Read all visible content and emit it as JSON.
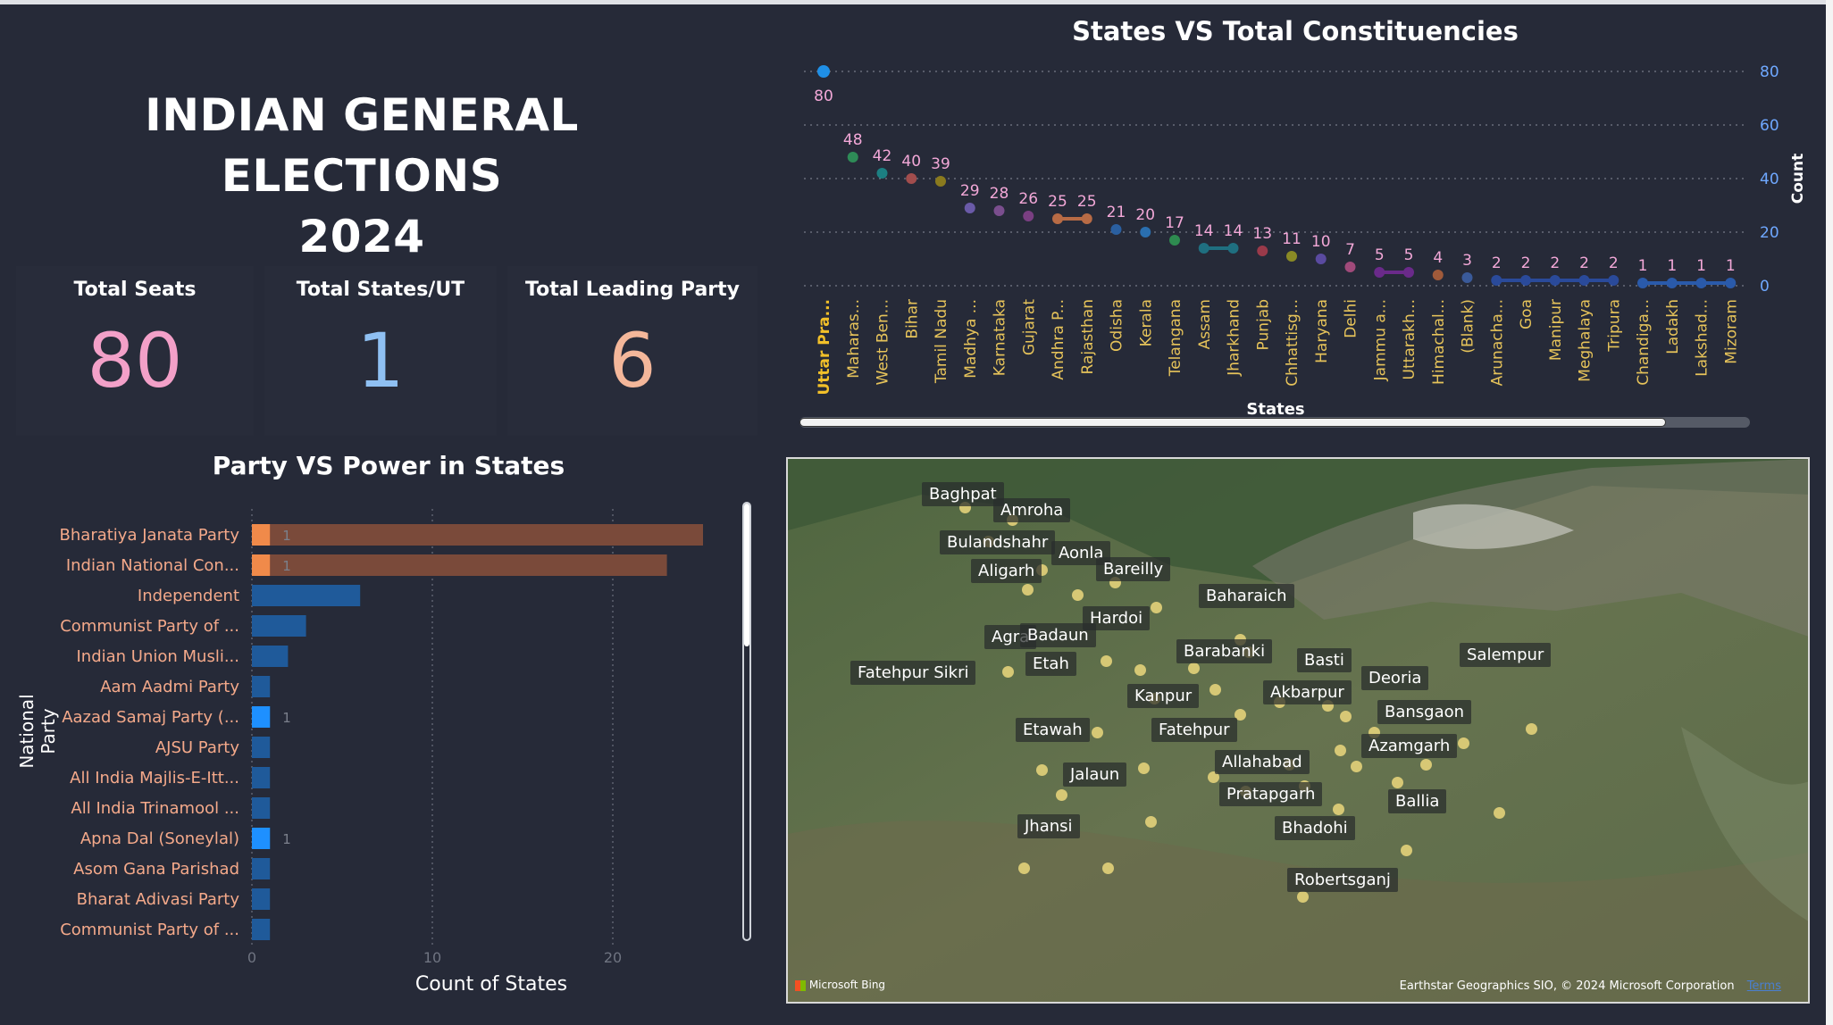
{
  "header": {
    "title_line1": "INDIAN GENERAL ELECTIONS",
    "title_line2": "2024"
  },
  "cards": [
    {
      "label": "Total Seats",
      "value": "80",
      "color": "#f3a0c8"
    },
    {
      "label": "Total States/UT",
      "value": "1",
      "color": "#8fc0f2"
    },
    {
      "label": "Total Leading Party",
      "value": "6",
      "color": "#f4b79a"
    }
  ],
  "party_chart": {
    "title": "Party VS Power in States",
    "ylabel": "National Party",
    "xlabel": "Count of States",
    "xticks": [
      "0",
      "10",
      "20"
    ],
    "xlim": [
      0,
      27
    ],
    "rows": [
      {
        "name": "Bharatiya Janata Party",
        "value": 25,
        "highlight": 1,
        "label": "1"
      },
      {
        "name": "Indian National Con...",
        "value": 23,
        "highlight": 1,
        "label": "1"
      },
      {
        "name": "Independent",
        "value": 6,
        "highlight": 0,
        "label": ""
      },
      {
        "name": "Communist Party of ...",
        "value": 3,
        "highlight": 0,
        "label": ""
      },
      {
        "name": "Indian Union Musli...",
        "value": 2,
        "highlight": 0,
        "label": ""
      },
      {
        "name": "Aam Aadmi Party",
        "value": 1,
        "highlight": 0,
        "label": ""
      },
      {
        "name": "Aazad Samaj Party (...",
        "value": 1,
        "highlight": 1,
        "label": "1"
      },
      {
        "name": "AJSU Party",
        "value": 1,
        "highlight": 0,
        "label": ""
      },
      {
        "name": "All India Majlis-E-Itt...",
        "value": 1,
        "highlight": 0,
        "label": ""
      },
      {
        "name": "All India Trinamool ...",
        "value": 1,
        "highlight": 0,
        "label": ""
      },
      {
        "name": "Apna Dal (Soneylal)",
        "value": 1,
        "highlight": 1,
        "label": "1"
      },
      {
        "name": "Asom Gana Parishad",
        "value": 1,
        "highlight": 0,
        "label": ""
      },
      {
        "name": "Bharat Adivasi Party",
        "value": 1,
        "highlight": 0,
        "label": ""
      },
      {
        "name": "Communist Party of ...",
        "value": 1,
        "highlight": 0,
        "label": ""
      }
    ]
  },
  "chart_data": {
    "type": "scatter",
    "title": "States VS Total Constituencies",
    "xlabel": "States",
    "ylabel": "Count",
    "ylim": [
      0,
      80
    ],
    "yticks": [
      "0",
      "20",
      "40",
      "60",
      "80"
    ],
    "categories": [
      "Uttar Pra...",
      "Maharas...",
      "West Ben...",
      "Bihar",
      "Tamil Nadu",
      "Madhya ...",
      "Karnataka",
      "Gujarat",
      "Andhra P...",
      "Rajasthan",
      "Odisha",
      "Kerala",
      "Telangana",
      "Assam",
      "Jharkhand",
      "Punjab",
      "Chhattisg...",
      "Haryana",
      "Delhi",
      "Jammu a...",
      "Uttarakh...",
      "Himachal...",
      "(Blank)",
      "Arunacha...",
      "Goa",
      "Manipur",
      "Meghalaya",
      "Tripura",
      "Chandiga...",
      "Ladakh",
      "Lakshad...",
      "Mizoram"
    ],
    "values": [
      80,
      48,
      42,
      40,
      39,
      29,
      28,
      26,
      25,
      25,
      21,
      20,
      17,
      14,
      14,
      13,
      11,
      10,
      7,
      5,
      5,
      4,
      3,
      2,
      2,
      2,
      2,
      2,
      1,
      1,
      1,
      1
    ],
    "colors": [
      "#1f8fe6",
      "#2e8b57",
      "#1c7f82",
      "#a24d4d",
      "#8a7a1e",
      "#6a5aa8",
      "#7a4e8e",
      "#7a3f82",
      "#b86b45",
      "#b86b45",
      "#2a5fa0",
      "#2a6fb0",
      "#2e8b50",
      "#1f6f80",
      "#1f6f80",
      "#9a3a4a",
      "#8a8a25",
      "#5a4aa0",
      "#a04a7a",
      "#6a2a8a",
      "#6a2a8a",
      "#a05a3a",
      "#3a5a9a",
      "#2a4a9a",
      "#2a4a9a",
      "#2a4a9a",
      "#2a4a9a",
      "#2a4a9a",
      "#2a5aaa",
      "#2a5aaa",
      "#2a5aaa",
      "#2a5aaa"
    ],
    "grid": true
  },
  "map": {
    "attribution_left": "Microsoft Bing",
    "attribution_right": "Earthstar Geographics SIO, © 2024 Microsoft Corporation",
    "terms": "Terms",
    "labels": [
      "Baghpat",
      "Amroha",
      "Bulandshahr",
      "Aonla",
      "Aligarh",
      "Bareilly",
      "Baharaich",
      "Hardoi",
      "Agra",
      "Badaun",
      "Barabanki",
      "Basti",
      "Salempur",
      "Fatehpur Sikri",
      "Etah",
      "Deoria",
      "Kanpur",
      "Akbarpur",
      "Bansgaon",
      "Etawah",
      "Fatehpur",
      "Azamgarh",
      "Allahabad",
      "Jalaun",
      "Pratapgarh",
      "Ballia",
      "Jhansi",
      "Bhadohi",
      "Robertsganj"
    ]
  }
}
